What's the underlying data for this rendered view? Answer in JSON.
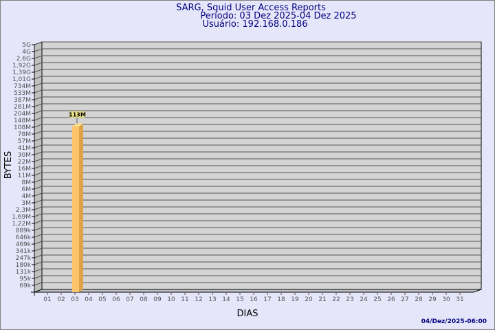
{
  "chart_data": {
    "type": "bar",
    "title": "SARG, Squid User Access Reports",
    "subtitle": [
      "Período: 03 Dez 2025-04 Dez 2025",
      "Usuário: 192.168.0.186"
    ],
    "xlabel": "DIAS",
    "ylabel": "BYTES",
    "y_scale": "log",
    "grid": true,
    "y_tick_labels": [
      "5G",
      "4G",
      "2,6G",
      "1,92G",
      "1,39G",
      "1,01G",
      "734M",
      "533M",
      "387M",
      "281M",
      "204M",
      "148M",
      "108M",
      "78M",
      "57M",
      "41M",
      "30M",
      "22M",
      "16M",
      "11M",
      "8M",
      "6M",
      "4M",
      "3M",
      "2,3M",
      "1,69M",
      "1,22M",
      "889k",
      "646k",
      "469k",
      "341k",
      "247k",
      "180k",
      "131k",
      "95k",
      "69k"
    ],
    "categories": [
      "01",
      "02",
      "03",
      "04",
      "05",
      "06",
      "07",
      "08",
      "09",
      "10",
      "11",
      "12",
      "13",
      "14",
      "15",
      "16",
      "17",
      "18",
      "19",
      "20",
      "21",
      "22",
      "23",
      "24",
      "25",
      "26",
      "27",
      "28",
      "29",
      "30",
      "31"
    ],
    "values": [
      null,
      null,
      113000000,
      null,
      null,
      null,
      null,
      null,
      null,
      null,
      null,
      null,
      null,
      null,
      null,
      null,
      null,
      null,
      null,
      null,
      null,
      null,
      null,
      null,
      null,
      null,
      null,
      null,
      null,
      null,
      null
    ],
    "data_labels": {
      "03": "113M"
    },
    "footer": "04/Dez/2025-06:00",
    "colors": {
      "background": "#e6e6fa",
      "plot": "#d4d4d4",
      "bar_front": "#fcc46a",
      "bar_side": "#dda24a",
      "bar_top": "#ffe08a",
      "title": "#000080",
      "label_box": "#f0e68c"
    }
  }
}
